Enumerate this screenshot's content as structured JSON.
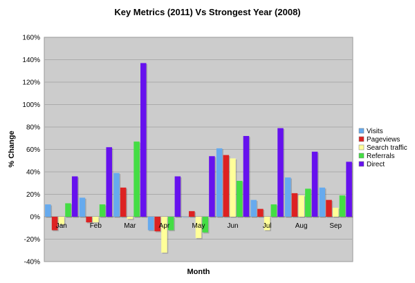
{
  "chart_data": {
    "type": "bar",
    "title": "Key Metrics (2011) Vs Strongest Year (2008)",
    "xlabel": "Month",
    "ylabel": "% Change",
    "ylim": [
      -40,
      160
    ],
    "ytick_step": 20,
    "ytick_suffix": "%",
    "grid": true,
    "legend_position": "right",
    "categories": [
      "Jan",
      "Feb",
      "Mar",
      "Apr",
      "May",
      "Jun",
      "Jul",
      "Aug",
      "Sep"
    ],
    "series": [
      {
        "name": "Visits",
        "color": "#66aaee",
        "values": [
          11,
          17,
          39,
          -12,
          0,
          61,
          15,
          35,
          26
        ]
      },
      {
        "name": "Pageviews",
        "color": "#dd2222",
        "values": [
          -12,
          -5,
          26,
          -13,
          5,
          55,
          7,
          21,
          15
        ]
      },
      {
        "name": "Search traffic",
        "color": "#ffff99",
        "values": [
          -7,
          -5,
          -2,
          -32,
          -19,
          52,
          -12,
          19,
          8
        ]
      },
      {
        "name": "Referrals",
        "color": "#44dd44",
        "values": [
          12,
          11,
          67,
          -12,
          -14,
          32,
          11,
          25,
          19
        ]
      },
      {
        "name": "Direct",
        "color": "#6611ee",
        "values": [
          36,
          62,
          137,
          36,
          54,
          72,
          79,
          58,
          49
        ]
      }
    ]
  }
}
